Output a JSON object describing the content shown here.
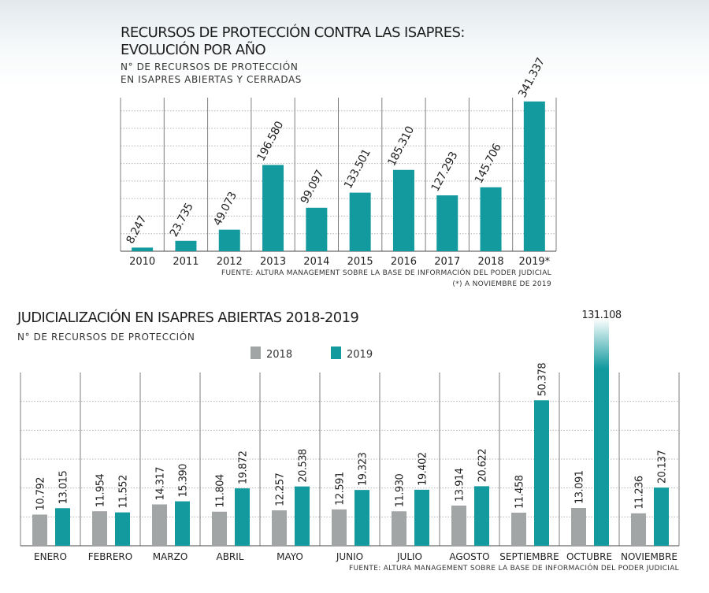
{
  "chart_data": [
    {
      "type": "bar",
      "title_lines": [
        "RECURSOS DE PROTECCIÓN CONTRA LAS ISAPRES:",
        "EVOLUCIÓN POR AÑO"
      ],
      "subtitle_lines": [
        "N° DE RECURSOS DE PROTECCIÓN",
        "EN ISAPRES ABIERTAS Y CERRADAS"
      ],
      "categories": [
        "2010",
        "2011",
        "2012",
        "2013",
        "2014",
        "2015",
        "2016",
        "2017",
        "2018",
        "2019*"
      ],
      "values": [
        8247,
        23735,
        49073,
        196580,
        99097,
        133501,
        185310,
        127293,
        145706,
        341337
      ],
      "value_labels": [
        "8.247",
        "23.735",
        "49.073",
        "196.580",
        "99.097",
        "133.501",
        "185.310",
        "127.293",
        "145.706",
        "341.337"
      ],
      "ylim": [
        0,
        350000
      ],
      "grid": true,
      "color": "#139a9f",
      "source": "FUENTE: ALTURA MANAGEMENT SOBRE LA BASE DE INFORMACIÓN DEL PODER JUDICIAL",
      "note": "(*) A NOVIEMBRE DE 2019"
    },
    {
      "type": "bar",
      "title": "JUDICIALIZACIÓN EN ISAPRES ABIERTAS 2018-2019",
      "subtitle": "N° DE RECURSOS DE PROTECCIÓN",
      "categories": [
        "ENERO",
        "FEBRERO",
        "MARZO",
        "ABRIL",
        "MAYO",
        "JUNIO",
        "JULIO",
        "AGOSTO",
        "SEPTIEMBRE",
        "OCTUBRE",
        "NOVIEMBRE"
      ],
      "series": [
        {
          "name": "2018",
          "color": "#a2a5a5",
          "values": [
            10792,
            11954,
            14317,
            11804,
            12257,
            12591,
            11930,
            13914,
            11458,
            13091,
            11236
          ],
          "value_labels": [
            "10.792",
            "11.954",
            "14.317",
            "11.804",
            "12.257",
            "12.591",
            "11.930",
            "13.914",
            "11.458",
            "13.091",
            "11.236"
          ]
        },
        {
          "name": "2019",
          "color": "#139a9f",
          "values": [
            13015,
            11552,
            15390,
            19872,
            20538,
            19323,
            19402,
            20622,
            50378,
            131108,
            20137
          ],
          "value_labels": [
            "13.015",
            "11.552",
            "15.390",
            "19.872",
            "20.538",
            "19.323",
            "19.402",
            "20.622",
            "50.378",
            "131.108",
            "20.137"
          ]
        }
      ],
      "ylim": [
        0,
        60000
      ],
      "grid": true,
      "legend": "top-center",
      "axis_break": "OCTUBRE 2019 bar exceeds scale and fades out at top",
      "source": "FUENTE: ALTURA MANAGEMENT SOBRE LA BASE DE INFORMACIÓN DEL PODER JUDICIAL"
    }
  ]
}
